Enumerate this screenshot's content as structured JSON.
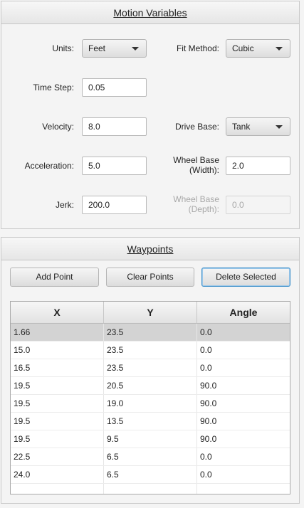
{
  "motion": {
    "title": "Motion Variables",
    "units_label": "Units:",
    "units_value": "Feet",
    "fit_label": "Fit Method:",
    "fit_value": "Cubic",
    "timestep_label": "Time Step:",
    "timestep_value": "0.05",
    "velocity_label": "Velocity:",
    "velocity_value": "8.0",
    "drivebase_label": "Drive Base:",
    "drivebase_value": "Tank",
    "accel_label": "Acceleration:",
    "accel_value": "5.0",
    "wheelbase_w_label1": "Wheel Base",
    "wheelbase_w_label2": "(Width):",
    "wheelbase_w_value": "2.0",
    "jerk_label": "Jerk:",
    "jerk_value": "200.0",
    "wheelbase_d_label1": "Wheel Base",
    "wheelbase_d_label2": "(Depth):",
    "wheelbase_d_value": "0.0"
  },
  "waypoints": {
    "title": "Waypoints",
    "add_label": "Add Point",
    "clear_label": "Clear Points",
    "delete_label": "Delete Selected",
    "columns": [
      "X",
      "Y",
      "Angle"
    ],
    "rows": [
      [
        "1.66",
        "23.5",
        "0.0"
      ],
      [
        "15.0",
        "23.5",
        "0.0"
      ],
      [
        "16.5",
        "23.5",
        "0.0"
      ],
      [
        "19.5",
        "20.5",
        "90.0"
      ],
      [
        "19.5",
        "19.0",
        "90.0"
      ],
      [
        "19.5",
        "13.5",
        "90.0"
      ],
      [
        "19.5",
        "9.5",
        "90.0"
      ],
      [
        "22.5",
        "6.5",
        "0.0"
      ],
      [
        "24.0",
        "6.5",
        "0.0"
      ]
    ],
    "selected_row": 0
  }
}
